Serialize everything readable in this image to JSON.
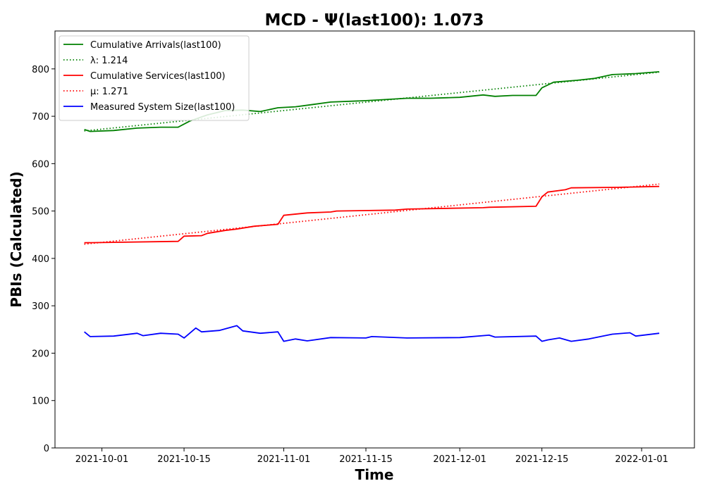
{
  "chart_data": {
    "type": "line",
    "title": "MCD -  Ψ(last100): 1.073",
    "xlabel": "Time",
    "ylabel": "PBIs (Calculated)",
    "xlim": [
      "2021-09-23",
      "2022-01-10"
    ],
    "ylim": [
      0,
      880
    ],
    "x_ticks": [
      "2021-10-01",
      "2021-10-15",
      "2021-11-01",
      "2021-11-15",
      "2021-12-01",
      "2021-12-15",
      "2022-01-01"
    ],
    "y_ticks": [
      0,
      100,
      200,
      300,
      400,
      500,
      600,
      700,
      800
    ],
    "grid": false,
    "legend_position": "top-left",
    "series": [
      {
        "name": "Cumulative Arrivals(last100)",
        "color": "#008000",
        "style": "solid",
        "points": [
          [
            "2021-09-28",
            672
          ],
          [
            "2021-09-29",
            668
          ],
          [
            "2021-10-03",
            670
          ],
          [
            "2021-10-07",
            675
          ],
          [
            "2021-10-11",
            677
          ],
          [
            "2021-10-14",
            677
          ],
          [
            "2021-10-16",
            690
          ],
          [
            "2021-10-19",
            703
          ],
          [
            "2021-10-22",
            712
          ],
          [
            "2021-10-25",
            713
          ],
          [
            "2021-10-28",
            710
          ],
          [
            "2021-10-31",
            718
          ],
          [
            "2021-11-03",
            720
          ],
          [
            "2021-11-06",
            725
          ],
          [
            "2021-11-09",
            730
          ],
          [
            "2021-11-15",
            733
          ],
          [
            "2021-11-18",
            735
          ],
          [
            "2021-11-22",
            738
          ],
          [
            "2021-11-26",
            738
          ],
          [
            "2021-12-01",
            740
          ],
          [
            "2021-12-05",
            745
          ],
          [
            "2021-12-07",
            742
          ],
          [
            "2021-12-10",
            744
          ],
          [
            "2021-12-14",
            744
          ],
          [
            "2021-12-15",
            760
          ],
          [
            "2021-12-17",
            772
          ],
          [
            "2021-12-21",
            776
          ],
          [
            "2021-12-24",
            780
          ],
          [
            "2021-12-27",
            788
          ],
          [
            "2021-12-31",
            790
          ],
          [
            "2022-01-04",
            794
          ]
        ]
      },
      {
        "name": "λ: 1.214",
        "color": "#008000",
        "style": "dotted",
        "points": [
          [
            "2021-09-28",
            669
          ],
          [
            "2022-01-04",
            793
          ]
        ]
      },
      {
        "name": "Cumulative Services(last100)",
        "color": "#ff0000",
        "style": "solid",
        "points": [
          [
            "2021-09-28",
            433
          ],
          [
            "2021-10-14",
            436
          ],
          [
            "2021-10-15",
            447
          ],
          [
            "2021-10-18",
            448
          ],
          [
            "2021-10-19",
            453
          ],
          [
            "2021-10-22",
            459
          ],
          [
            "2021-10-24",
            462
          ],
          [
            "2021-10-27",
            468
          ],
          [
            "2021-10-31",
            472
          ],
          [
            "2021-11-01",
            491
          ],
          [
            "2021-11-05",
            496
          ],
          [
            "2021-11-09",
            498
          ],
          [
            "2021-11-10",
            500
          ],
          [
            "2021-11-20",
            502
          ],
          [
            "2021-11-22",
            504
          ],
          [
            "2021-12-05",
            507
          ],
          [
            "2021-12-06",
            508
          ],
          [
            "2021-12-14",
            510
          ],
          [
            "2021-12-15",
            530
          ],
          [
            "2021-12-16",
            540
          ],
          [
            "2021-12-19",
            545
          ],
          [
            "2021-12-20",
            549
          ],
          [
            "2021-12-28",
            550
          ],
          [
            "2022-01-04",
            552
          ]
        ]
      },
      {
        "name": "μ: 1.271",
        "color": "#ff0000",
        "style": "dotted",
        "points": [
          [
            "2021-09-28",
            430
          ],
          [
            "2022-01-04",
            557
          ]
        ]
      },
      {
        "name": "Measured System Size(last100)",
        "color": "#0000ff",
        "style": "solid",
        "points": [
          [
            "2021-09-28",
            245
          ],
          [
            "2021-09-29",
            235
          ],
          [
            "2021-10-03",
            236
          ],
          [
            "2021-10-07",
            242
          ],
          [
            "2021-10-08",
            237
          ],
          [
            "2021-10-11",
            242
          ],
          [
            "2021-10-14",
            240
          ],
          [
            "2021-10-15",
            232
          ],
          [
            "2021-10-17",
            253
          ],
          [
            "2021-10-18",
            245
          ],
          [
            "2021-10-21",
            248
          ],
          [
            "2021-10-24",
            258
          ],
          [
            "2021-10-25",
            247
          ],
          [
            "2021-10-28",
            242
          ],
          [
            "2021-10-31",
            245
          ],
          [
            "2021-11-01",
            225
          ],
          [
            "2021-11-03",
            230
          ],
          [
            "2021-11-05",
            226
          ],
          [
            "2021-11-09",
            233
          ],
          [
            "2021-11-15",
            232
          ],
          [
            "2021-11-16",
            235
          ],
          [
            "2021-11-22",
            232
          ],
          [
            "2021-12-01",
            233
          ],
          [
            "2021-12-06",
            238
          ],
          [
            "2021-12-07",
            234
          ],
          [
            "2021-12-14",
            236
          ],
          [
            "2021-12-15",
            225
          ],
          [
            "2021-12-16",
            228
          ],
          [
            "2021-12-18",
            232
          ],
          [
            "2021-12-20",
            225
          ],
          [
            "2021-12-23",
            230
          ],
          [
            "2021-12-27",
            240
          ],
          [
            "2021-12-30",
            243
          ],
          [
            "2021-12-31",
            236
          ],
          [
            "2022-01-04",
            242
          ]
        ]
      }
    ]
  }
}
